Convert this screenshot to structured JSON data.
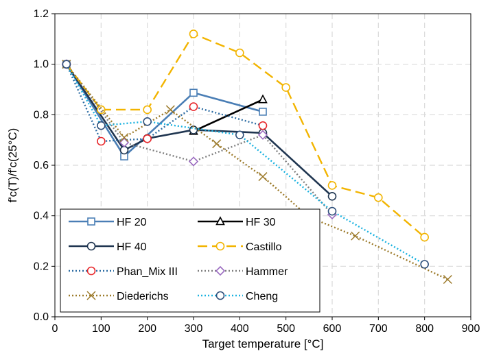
{
  "chart_data": {
    "type": "line",
    "title": "",
    "xlabel": "Target temperature [°C]",
    "ylabel": "f'c(T)/f'c(25°C)",
    "xlim": [
      0,
      900
    ],
    "ylim": [
      0.0,
      1.2
    ],
    "xticks": [
      0,
      100,
      200,
      300,
      400,
      500,
      600,
      700,
      800,
      900
    ],
    "yticks": [
      0.0,
      0.2,
      0.4,
      0.6,
      0.8,
      1.0,
      1.2
    ],
    "xtick_labels": [
      "0",
      "100",
      "200",
      "300",
      "400",
      "500",
      "600",
      "700",
      "800",
      "900"
    ],
    "ytick_labels": [
      "0.0",
      "0.2",
      "0.4",
      "0.6",
      "0.8",
      "1.0",
      "1.2"
    ],
    "grid": true,
    "legend_position": "bottom-left",
    "series": [
      {
        "name": "HF 20",
        "color": "#4a7eb5",
        "marker": "square",
        "line": "solid",
        "x": [
          25,
          150,
          300,
          450
        ],
        "y": [
          1.0,
          0.635,
          0.887,
          0.812
        ]
      },
      {
        "name": "HF 30",
        "color": "#000000",
        "marker": "triangle",
        "line": "solid",
        "x": [
          300,
          450
        ],
        "y": [
          0.735,
          0.86
        ]
      },
      {
        "name": "HF 40",
        "color": "#1f3550",
        "marker": "circle",
        "line": "solid",
        "x": [
          25,
          150,
          200,
          300,
          450,
          600
        ],
        "y": [
          1.0,
          0.66,
          0.706,
          0.74,
          0.728,
          0.477
        ]
      },
      {
        "name": "Castillo",
        "color": "#f2b400",
        "marker": "circle",
        "line": "dashed",
        "x": [
          25,
          100,
          200,
          300,
          400,
          500,
          600,
          700,
          800
        ],
        "y": [
          1.0,
          0.82,
          0.82,
          1.12,
          1.045,
          0.908,
          0.52,
          0.472,
          0.315
        ]
      },
      {
        "name": "Phan_Mix III",
        "color": "#2e6da4",
        "marker_color": "#e8262a",
        "marker": "circle",
        "line": "dotted",
        "x": [
          25,
          100,
          200,
          300,
          450
        ],
        "y": [
          1.0,
          0.695,
          0.705,
          0.832,
          0.757
        ]
      },
      {
        "name": "Hammer",
        "color": "#7f7f7f",
        "marker_color": "#9b6cc0",
        "marker": "diamond",
        "line": "dotted",
        "x": [
          25,
          150,
          300,
          450,
          600
        ],
        "y": [
          1.0,
          0.69,
          0.615,
          0.72,
          0.405
        ]
      },
      {
        "name": "Diederichs",
        "color": "#9c7a2a",
        "marker": "x",
        "line": "dotted",
        "x": [
          25,
          150,
          250,
          350,
          450,
          550,
          650,
          850
        ],
        "y": [
          1.0,
          0.71,
          0.82,
          0.685,
          0.555,
          0.395,
          0.32,
          0.148
        ]
      },
      {
        "name": "Cheng",
        "color": "#1ab2e0",
        "marker_color": "#2e4f7a",
        "marker": "circle",
        "line": "dotted",
        "x": [
          25,
          100,
          200,
          400,
          600,
          800
        ],
        "y": [
          1.0,
          0.757,
          0.773,
          0.72,
          0.418,
          0.208
        ]
      }
    ]
  }
}
